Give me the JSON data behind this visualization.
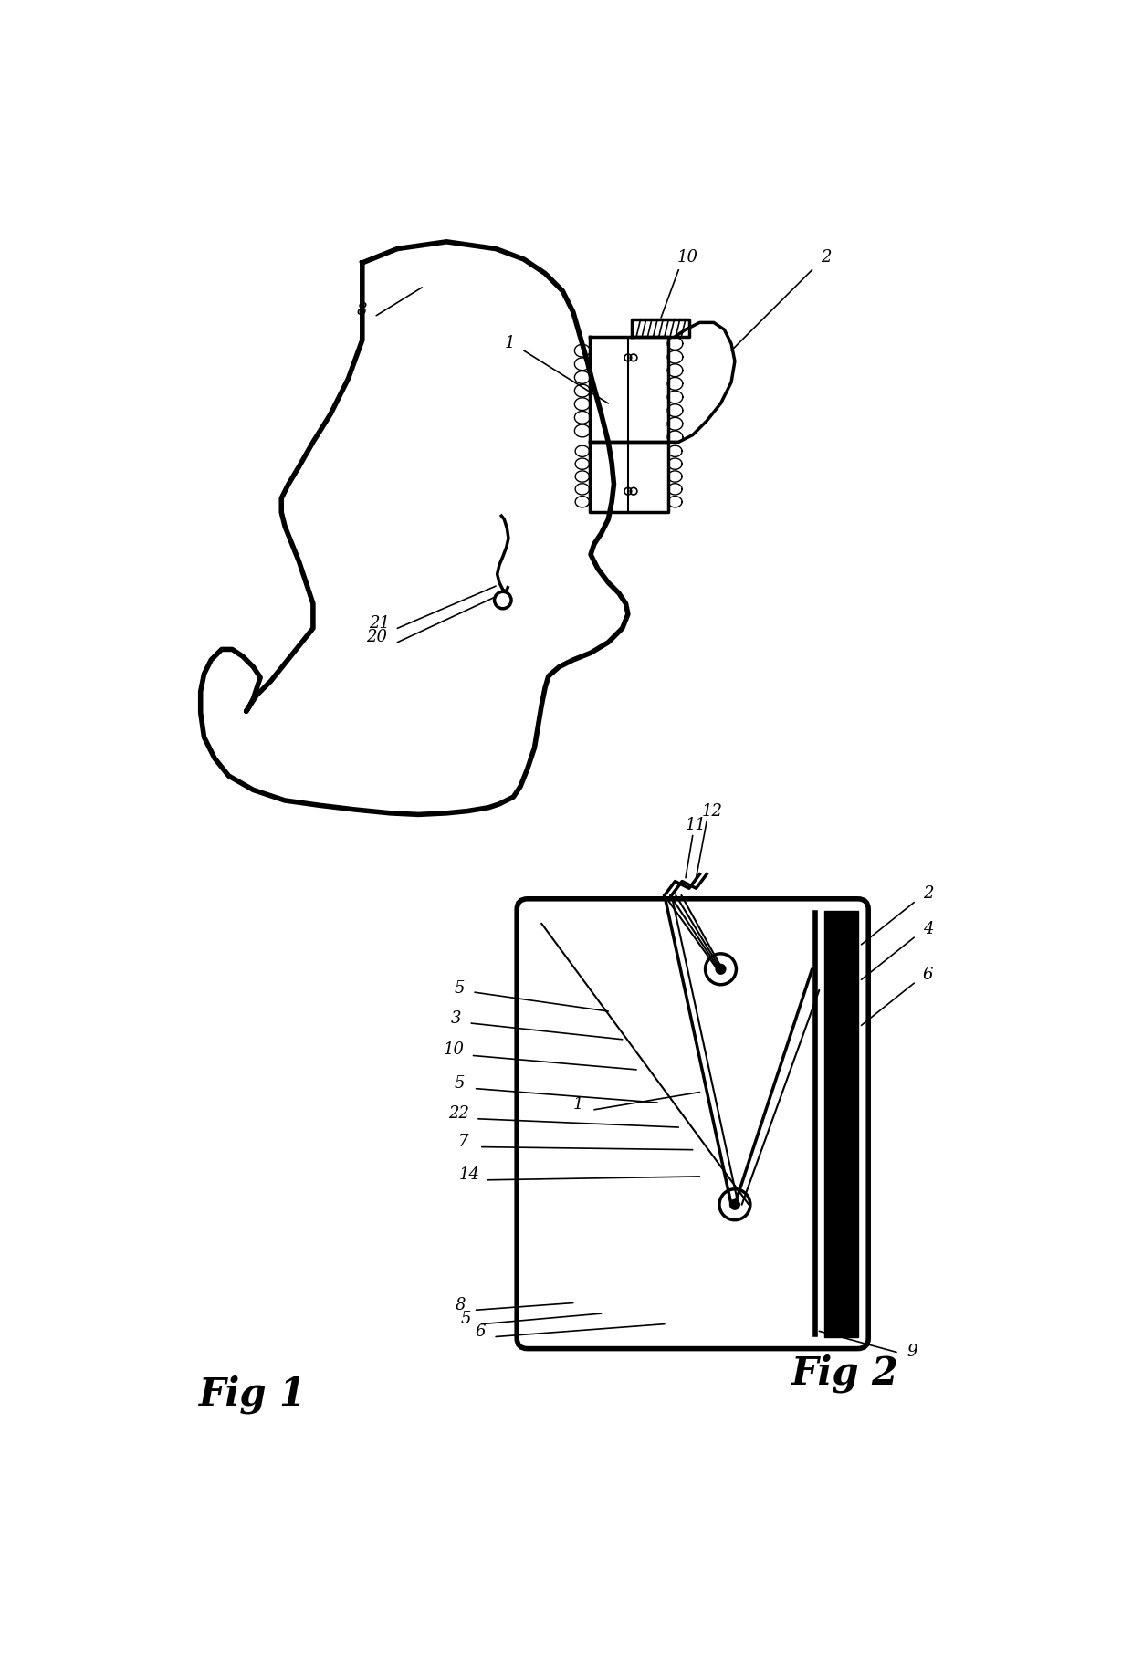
{
  "fig_width": 12.4,
  "fig_height": 18.22,
  "dpi": 100,
  "bg_color": "#ffffff",
  "line_color": "#000000",
  "fig1_label": "Fig 1",
  "fig2_label": "Fig 2"
}
